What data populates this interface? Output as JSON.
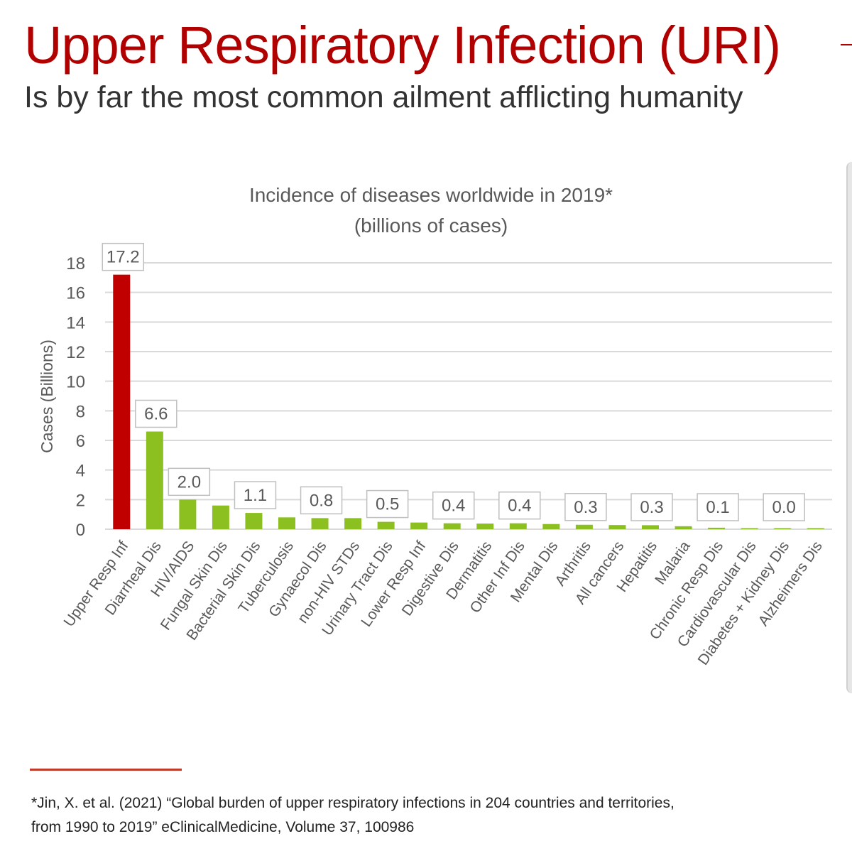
{
  "header": {
    "title": "Upper Respiratory Infection (URI)",
    "subtitle": "Is by far the most common ailment afflicting humanity"
  },
  "colors": {
    "title": "#b00000",
    "highlight_bar": "#c00000",
    "bar": "#8cc021",
    "grid": "#d9d9d9",
    "text": "#595959"
  },
  "chart_data": {
    "type": "bar",
    "title": "Incidence of diseases worldwide in 2019*",
    "subtitle": "(billions of cases)",
    "xlabel": "",
    "ylabel": "Cases (Billions)",
    "ylim": [
      0,
      18
    ],
    "yticks": [
      "0",
      "2",
      "4",
      "6",
      "8",
      "10",
      "12",
      "14",
      "16",
      "18"
    ],
    "grid": true,
    "categories": [
      "Upper Resp Inf",
      "Diarrheal Dis",
      "HIV/AIDS",
      "Fungal Skin Dis",
      "Bacterial Skin Dis",
      "Tuberculosis",
      "Gynaecol Dis",
      "non-HIV STDs",
      "Urinary Tract Dis",
      "Lower Resp Inf",
      "Digestive Dis",
      "Dermatitis",
      "Other Inf Dis",
      "Mental Dis",
      "Arthritis",
      "All cancers",
      "Hepatitis",
      "Malaria",
      "Chronic Resp Dis",
      "Cardiovascular Dis",
      "Diabetes + Kidney Dis",
      "Alzheimers Dis"
    ],
    "values": [
      17.2,
      6.6,
      2.0,
      1.6,
      1.1,
      0.8,
      0.75,
      0.75,
      0.5,
      0.45,
      0.4,
      0.38,
      0.4,
      0.35,
      0.3,
      0.28,
      0.27,
      0.2,
      0.1,
      0.06,
      0.05,
      0.03
    ],
    "data_labels": [
      {
        "index": 0,
        "text": "17.2"
      },
      {
        "index": 1,
        "text": "6.6"
      },
      {
        "index": 2,
        "text": "2.0"
      },
      {
        "index": 4,
        "text": "1.1"
      },
      {
        "index": 6,
        "text": "0.8"
      },
      {
        "index": 8,
        "text": "0.5"
      },
      {
        "index": 10,
        "text": "0.4"
      },
      {
        "index": 12,
        "text": "0.4"
      },
      {
        "index": 14,
        "text": "0.3"
      },
      {
        "index": 16,
        "text": "0.3"
      },
      {
        "index": 18,
        "text": "0.1"
      },
      {
        "index": 20,
        "text": "0.0"
      }
    ],
    "highlight_index": 0
  },
  "footnote": {
    "line1": "*Jin, X. et al. (2021) “Global burden of upper respiratory infections in 204 countries and territories,",
    "line2": "from 1990 to 2019” eClinicalMedicine, Volume 37, 100986"
  }
}
